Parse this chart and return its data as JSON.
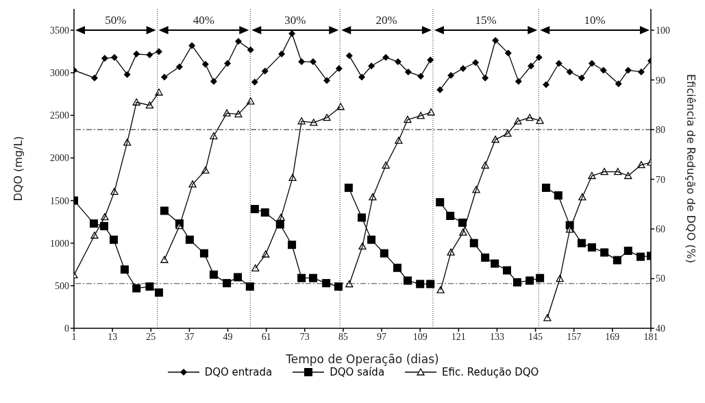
{
  "chart_data": {
    "type": "line",
    "xlabel": "Tempo de Operação (dias)",
    "ylabel": "DQO (mg/L)",
    "y2label": "Eficiência de Redução de DQO (%)",
    "xlim": [
      1,
      181
    ],
    "xticks": [
      1,
      13,
      25,
      37,
      49,
      61,
      73,
      85,
      97,
      109,
      121,
      133,
      145,
      157,
      169,
      181
    ],
    "ylim": [
      0,
      3750
    ],
    "yticks": [
      0,
      500,
      1000,
      1500,
      2000,
      2500,
      3000,
      3500
    ],
    "y2lim": [
      40,
      104.3
    ],
    "y2ticks": [
      40,
      50,
      60,
      70,
      80,
      90,
      100
    ],
    "legend": "bottom",
    "grid": false,
    "series": [
      {
        "name": "DQO entrada",
        "color": "#000000",
        "marker": "diamond",
        "x": [
          1,
          7.4,
          10.6,
          13.6,
          17.6,
          20.5,
          24.6,
          27.5,
          28.3,
          29.2,
          33.9,
          37.8,
          42,
          44.6,
          48.9,
          52.3,
          56.1,
          56.8,
          57.4,
          60.6,
          65.8,
          69,
          72,
          75.6,
          79.9,
          83.7,
          85.3,
          86.9,
          90.8,
          93.8,
          98.3,
          102.1,
          105.3,
          109.2,
          112.2,
          113.7,
          115.2,
          118.6,
          122.4,
          126.3,
          129.3,
          132.5,
          136.5,
          139.7,
          143.6,
          146.1,
          147.2,
          148.3,
          152.3,
          155.7,
          159.4,
          162.6,
          166.2,
          170.9,
          173.9,
          178,
          181
        ],
        "values": [
          3030,
          2940,
          3170,
          3180,
          2980,
          3220,
          3210,
          3250,
          null,
          2950,
          3070,
          3320,
          3100,
          2900,
          3110,
          3370,
          3270,
          null,
          2890,
          3020,
          3220,
          3460,
          3130,
          3130,
          2910,
          3050,
          null,
          3200,
          2950,
          3080,
          3180,
          3130,
          3010,
          2960,
          3150,
          null,
          2800,
          2970,
          3050,
          3120,
          2940,
          3380,
          3230,
          2900,
          3080,
          3180,
          null,
          2860,
          3110,
          3010,
          2940,
          3110,
          3030,
          2870,
          3030,
          3010,
          3140
        ]
      },
      {
        "name": "DQO saída",
        "color": "#000000",
        "marker": "square",
        "x": [
          1,
          7.2,
          10.4,
          13.4,
          16.8,
          20.5,
          24.6,
          27.5,
          28.3,
          29.2,
          33.9,
          37.1,
          41.6,
          44.6,
          48.7,
          52.1,
          55.9,
          56.6,
          57.4,
          60.6,
          65.3,
          69,
          72,
          75.6,
          79.7,
          83.5,
          85.1,
          86.7,
          90.8,
          93.8,
          97.8,
          101.9,
          105.1,
          109,
          112.2,
          113.7,
          115.2,
          118.4,
          122.2,
          125.8,
          129.3,
          132.3,
          136.1,
          139.3,
          143.2,
          146.4,
          147.3,
          148.3,
          152.1,
          155.7,
          159.4,
          162.6,
          166.5,
          170.5,
          173.9,
          177.8,
          181
        ],
        "values": [
          1500,
          1230,
          1200,
          1040,
          690,
          470,
          490,
          420,
          null,
          1380,
          1230,
          1040,
          880,
          630,
          530,
          600,
          490,
          null,
          1400,
          1360,
          1220,
          980,
          590,
          590,
          530,
          490,
          null,
          1650,
          1300,
          1040,
          880,
          710,
          560,
          520,
          520,
          null,
          1480,
          1320,
          1240,
          1000,
          830,
          760,
          680,
          540,
          560,
          590,
          null,
          1650,
          1560,
          1210,
          1000,
          950,
          890,
          800,
          910,
          840,
          850
        ]
      },
      {
        "name": "Efic. Redução DQO",
        "color": "#000000",
        "marker": "triangle",
        "axis": "y2",
        "x": [
          1,
          7.4,
          10.6,
          13.6,
          17.6,
          20.5,
          24.6,
          27.5,
          28.3,
          29.2,
          33.9,
          38,
          42,
          44.6,
          48.7,
          52.3,
          56.1,
          56.8,
          57.6,
          60.8,
          65.6,
          69.2,
          72,
          75.8,
          79.9,
          84.2,
          85.5,
          86.9,
          91,
          94.2,
          98.3,
          102.3,
          105.1,
          109.2,
          112.4,
          113.9,
          115.4,
          118.6,
          122.4,
          126.5,
          129.3,
          132.5,
          136.3,
          139.5,
          143.2,
          146.4,
          147.5,
          148.7,
          152.6,
          155.7,
          159.6,
          162.6,
          166.5,
          170.7,
          173.9,
          178,
          181
        ],
        "values": [
          50.7,
          58.7,
          62.4,
          67.5,
          77.4,
          85.5,
          84.9,
          87.5,
          null,
          53.8,
          60.6,
          69.0,
          71.8,
          78.7,
          83.3,
          83.1,
          85.7,
          null,
          52.1,
          54.9,
          62.3,
          70.3,
          81.7,
          81.4,
          82.4,
          84.6,
          null,
          48.9,
          56.5,
          66.4,
          72.8,
          77.8,
          82.0,
          82.8,
          83.5,
          null,
          47.7,
          55.3,
          59.3,
          67.9,
          72.8,
          78.0,
          79.2,
          81.7,
          82.4,
          81.8,
          null,
          42.1,
          50.0,
          59.9,
          66.4,
          70.7,
          71.5,
          71.5,
          70.7,
          72.9,
          73.4
        ]
      }
    ],
    "ref_lines": [
      {
        "axis": "x",
        "value": 27,
        "line_style": "dotted",
        "color": "#444444"
      },
      {
        "axis": "x",
        "value": 56,
        "line_style": "dotted",
        "color": "#444444"
      },
      {
        "axis": "x",
        "value": 84,
        "line_style": "dotted",
        "color": "#444444"
      },
      {
        "axis": "x",
        "value": 113,
        "line_style": "dotted",
        "color": "#444444"
      },
      {
        "axis": "x",
        "value": 146,
        "line_style": "dotted",
        "color": "#444444"
      },
      {
        "axis": "y2",
        "value": 80,
        "line_style": "dashed",
        "color": "#444444"
      },
      {
        "axis": "y2",
        "value": 49,
        "line_style": "dashed",
        "color": "#444444"
      }
    ],
    "annotations": [
      "50%",
      "40%",
      "30%",
      "20%",
      "15%",
      "10%"
    ]
  }
}
